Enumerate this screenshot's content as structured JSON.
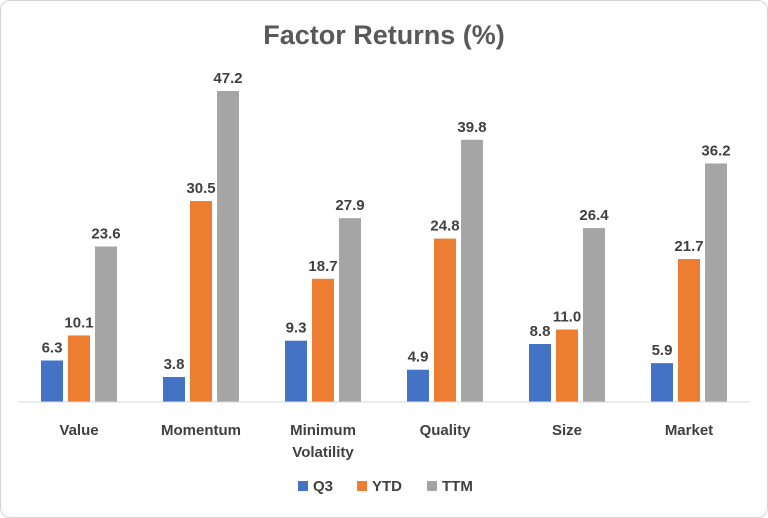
{
  "chart_data": {
    "type": "bar",
    "title": "Factor Returns (%)",
    "categories": [
      [
        "Value"
      ],
      [
        "Momentum"
      ],
      [
        "Minimum",
        "Volatility"
      ],
      [
        "Quality"
      ],
      [
        "Size"
      ],
      [
        "Market"
      ]
    ],
    "series": [
      {
        "name": "Q3",
        "color": "#4472C4",
        "values": [
          6.3,
          3.8,
          9.3,
          4.9,
          8.8,
          5.9
        ]
      },
      {
        "name": "YTD",
        "color": "#ED7D31",
        "values": [
          10.1,
          30.5,
          18.7,
          24.8,
          11.0,
          21.7
        ]
      },
      {
        "name": "TTM",
        "color": "#A5A5A5",
        "values": [
          23.6,
          47.2,
          27.9,
          39.8,
          26.4,
          36.2
        ]
      }
    ],
    "ylim": [
      0,
      47.2
    ],
    "grid": false,
    "legend": "bottom",
    "data_labels": true
  }
}
